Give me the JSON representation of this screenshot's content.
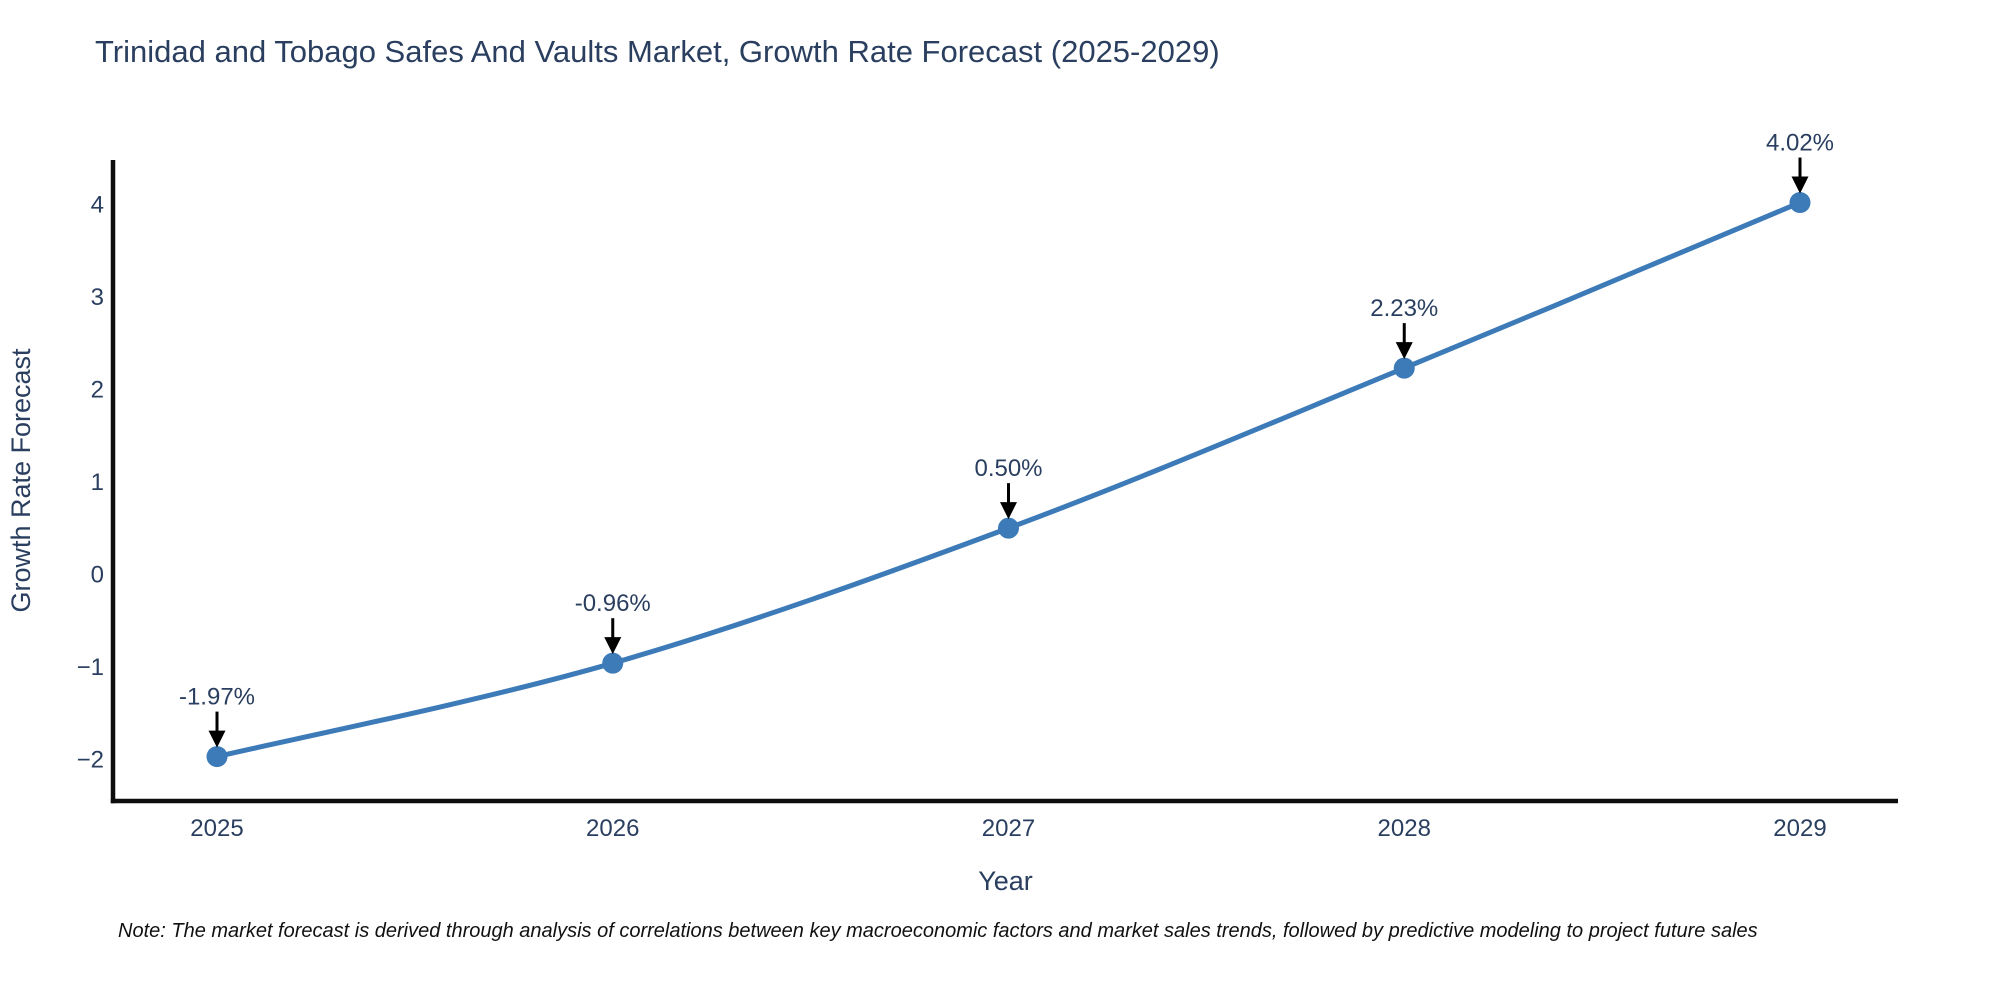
{
  "title": "Trinidad and Tobago Safes And Vaults Market, Growth Rate Forecast (2025-2029)",
  "note": "Note: The market forecast is derived through analysis of correlations between key macroeconomic factors and market sales trends, followed by predictive modeling to project future sales",
  "chart_data": {
    "type": "line",
    "title": "Trinidad and Tobago Safes And Vaults Market, Growth Rate Forecast (2025-2029)",
    "xlabel": "Year",
    "ylabel": "Growth Rate Forecast",
    "x": [
      2025,
      2026,
      2027,
      2028,
      2029
    ],
    "x_tick_labels": [
      "2025",
      "2026",
      "2027",
      "2028",
      "2029"
    ],
    "values": [
      -1.97,
      -0.96,
      0.5,
      2.23,
      4.02
    ],
    "point_labels": [
      "-1.97%",
      "-0.96%",
      "0.50%",
      "2.23%",
      "4.02%"
    ],
    "y_tick_values": [
      -2,
      -1,
      0,
      1,
      2,
      3,
      4
    ],
    "y_tick_labels": [
      "−2",
      "−1",
      "0",
      "1",
      "2",
      "3",
      "4"
    ],
    "ylim": [
      -2.45,
      4.48
    ],
    "grid": false,
    "legend_position": "none",
    "line_shape": "spline",
    "line_color": "#3c7ab8",
    "marker_color": "#3c7ab8",
    "arrow_color": "#000000",
    "text_color": "#2a3f5f",
    "axis_color": "#0d0d0d"
  }
}
